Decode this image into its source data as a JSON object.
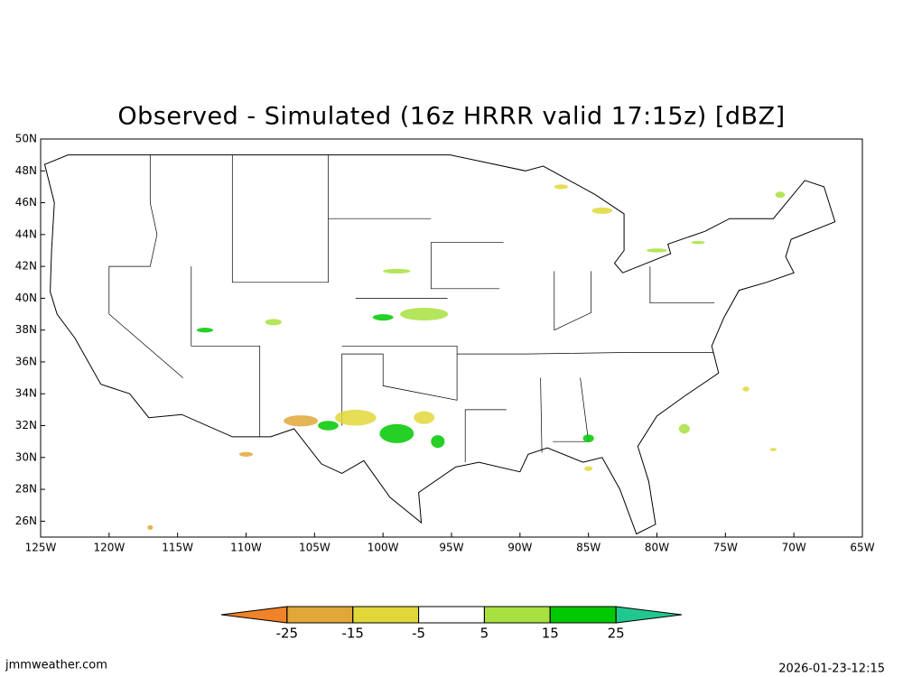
{
  "title": "Observed - Simulated (16z HRRR valid 17:15z) [dBZ]",
  "map": {
    "xlim": [
      -125,
      -65
    ],
    "ylim": [
      25,
      50
    ],
    "xticks": [
      {
        "value": -125,
        "label": "125W"
      },
      {
        "value": -120,
        "label": "120W"
      },
      {
        "value": -115,
        "label": "115W"
      },
      {
        "value": -110,
        "label": "110W"
      },
      {
        "value": -105,
        "label": "105W"
      },
      {
        "value": -100,
        "label": "100W"
      },
      {
        "value": -95,
        "label": "95W"
      },
      {
        "value": -90,
        "label": "90W"
      },
      {
        "value": -85,
        "label": "85W"
      },
      {
        "value": -80,
        "label": "80W"
      },
      {
        "value": -75,
        "label": "75W"
      },
      {
        "value": -70,
        "label": "70W"
      },
      {
        "value": -65,
        "label": "65W"
      }
    ],
    "yticks": [
      {
        "value": 26,
        "label": "26N"
      },
      {
        "value": 28,
        "label": "28N"
      },
      {
        "value": 30,
        "label": "30N"
      },
      {
        "value": 32,
        "label": "32N"
      },
      {
        "value": 34,
        "label": "34N"
      },
      {
        "value": 36,
        "label": "36N"
      },
      {
        "value": 38,
        "label": "38N"
      },
      {
        "value": 40,
        "label": "40N"
      },
      {
        "value": 42,
        "label": "42N"
      },
      {
        "value": 44,
        "label": "44N"
      },
      {
        "value": 46,
        "label": "46N"
      },
      {
        "value": 48,
        "label": "48N"
      },
      {
        "value": 50,
        "label": "50N"
      }
    ]
  },
  "colorbar": {
    "levels": [
      -25,
      -15,
      -5,
      5,
      15,
      25
    ],
    "colors": [
      "#f08228",
      "#e0a838",
      "#e0d838",
      "#ffffff",
      "#a8e040",
      "#00c800",
      "#20c890"
    ]
  },
  "footer": {
    "left": "jmmweather.com",
    "right": "2026-01-23-12:15"
  }
}
